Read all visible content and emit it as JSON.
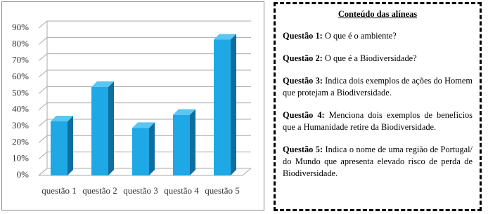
{
  "chart_data": {
    "type": "bar3d",
    "categories": [
      "questão 1",
      "questão 2",
      "questão 3",
      "questão 4",
      "questão 5"
    ],
    "values": [
      33,
      54,
      29,
      37,
      83
    ],
    "color": "#1ea8e6",
    "ylim": [
      0,
      90
    ],
    "yticks": [
      {
        "value": 0,
        "label": "0%"
      },
      {
        "value": 10,
        "label": "10%"
      },
      {
        "value": 20,
        "label": "20%"
      },
      {
        "value": 30,
        "label": "30%"
      },
      {
        "value": 40,
        "label": "40%"
      },
      {
        "value": 50,
        "label": "50%"
      },
      {
        "value": 60,
        "label": "60%"
      },
      {
        "value": 70,
        "label": "70%"
      },
      {
        "value": 80,
        "label": "80%"
      },
      {
        "value": 90,
        "label": "90%"
      }
    ],
    "grid": true
  },
  "panel": {
    "title": "Conteúdo das alíneas",
    "items": [
      {
        "label": "Questão 1:",
        "text": "O que é o ambiente?"
      },
      {
        "label": "Questão 2:",
        "text": "O que é a Biodiversidade?"
      },
      {
        "label": "Questão 3:",
        "text": "Indica dois exemplos de ações do Homem que protejam a Biodiversidade."
      },
      {
        "label": "Questão 4:",
        "text": "Menciona dois exemplos de benefícios que a Humanidade retire da Biodiversidade."
      },
      {
        "label": "Questão 5:",
        "text": "Indica o nome de uma região de Portugal/ do Mundo que apresenta elevado risco de perda de Biodiversidade."
      }
    ]
  }
}
